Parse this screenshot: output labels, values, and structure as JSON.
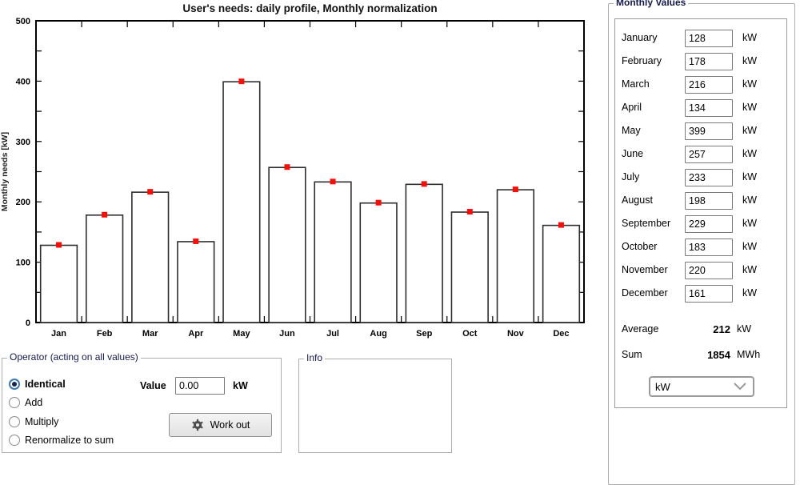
{
  "chart_data": {
    "type": "bar",
    "title": "User's needs: daily profile, Monthly normalization",
    "xlabel": "",
    "ylabel": "Monthly needs [kW]",
    "categories": [
      "Jan",
      "Feb",
      "Mar",
      "Apr",
      "May",
      "Jun",
      "Jul",
      "Aug",
      "Sep",
      "Oct",
      "Nov",
      "Dec"
    ],
    "values": [
      128,
      178,
      216,
      134,
      399,
      257,
      233,
      198,
      229,
      183,
      220,
      161
    ],
    "ylim": [
      0,
      500
    ],
    "ytick_label_step": 100,
    "ytick_minor_step": 50,
    "grid": false,
    "legend": null,
    "bar_fill": "#ffffff",
    "bar_edge": "#2e2e2e",
    "marker_color": "#f50f0a"
  },
  "monthly_values_panel": {
    "title": "Monthly Values",
    "rows": [
      {
        "label": "January",
        "value": "128",
        "unit": "kW"
      },
      {
        "label": "February",
        "value": "178",
        "unit": "kW"
      },
      {
        "label": "March",
        "value": "216",
        "unit": "kW"
      },
      {
        "label": "April",
        "value": "134",
        "unit": "kW"
      },
      {
        "label": "May",
        "value": "399",
        "unit": "kW"
      },
      {
        "label": "June",
        "value": "257",
        "unit": "kW"
      },
      {
        "label": "July",
        "value": "233",
        "unit": "kW"
      },
      {
        "label": "August",
        "value": "198",
        "unit": "kW"
      },
      {
        "label": "September",
        "value": "229",
        "unit": "kW"
      },
      {
        "label": "October",
        "value": "183",
        "unit": "kW"
      },
      {
        "label": "November",
        "value": "220",
        "unit": "kW"
      },
      {
        "label": "December",
        "value": "161",
        "unit": "kW"
      }
    ],
    "average": {
      "label": "Average",
      "value": "212",
      "unit": "kW"
    },
    "sum": {
      "label": "Sum",
      "value": "1854",
      "unit": "MWh"
    },
    "unit_dropdown": {
      "value": "kW"
    }
  },
  "operator_panel": {
    "title": "Operator (acting on all values)",
    "options": [
      {
        "label": "Identical",
        "selected": true
      },
      {
        "label": "Add",
        "selected": false
      },
      {
        "label": "Multiply",
        "selected": false
      },
      {
        "label": "Renormalize to sum",
        "selected": false
      }
    ],
    "value_label": "Value",
    "value": "0.00",
    "value_unit": "kW",
    "work_out_label": "Work out"
  },
  "info_panel": {
    "title": "Info"
  }
}
